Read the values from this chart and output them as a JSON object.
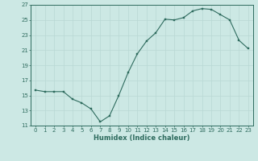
{
  "x": [
    0,
    1,
    2,
    3,
    4,
    5,
    6,
    7,
    8,
    9,
    10,
    11,
    12,
    13,
    14,
    15,
    16,
    17,
    18,
    19,
    20,
    21,
    22,
    23
  ],
  "y": [
    15.7,
    15.5,
    15.5,
    15.5,
    14.5,
    14.0,
    13.2,
    11.5,
    12.3,
    15.0,
    18.0,
    20.5,
    22.2,
    23.3,
    25.1,
    25.0,
    25.3,
    26.2,
    26.5,
    26.4,
    25.7,
    25.0,
    22.3,
    21.2
  ],
  "xlabel": "Humidex (Indice chaleur)",
  "line_color": "#2e6b5e",
  "marker_color": "#2e6b5e",
  "bg_color": "#cce8e4",
  "grid_color": "#b8d8d4",
  "tick_color": "#2e6b5e",
  "spine_color": "#2e6b5e",
  "ylim": [
    11,
    27
  ],
  "xlim": [
    -0.5,
    23.5
  ],
  "yticks": [
    11,
    13,
    15,
    17,
    19,
    21,
    23,
    25,
    27
  ],
  "xticks": [
    0,
    1,
    2,
    3,
    4,
    5,
    6,
    7,
    8,
    9,
    10,
    11,
    12,
    13,
    14,
    15,
    16,
    17,
    18,
    19,
    20,
    21,
    22,
    23
  ],
  "xlabel_fontsize": 6,
  "tick_fontsize": 5,
  "linewidth": 0.8,
  "markersize": 2.0
}
